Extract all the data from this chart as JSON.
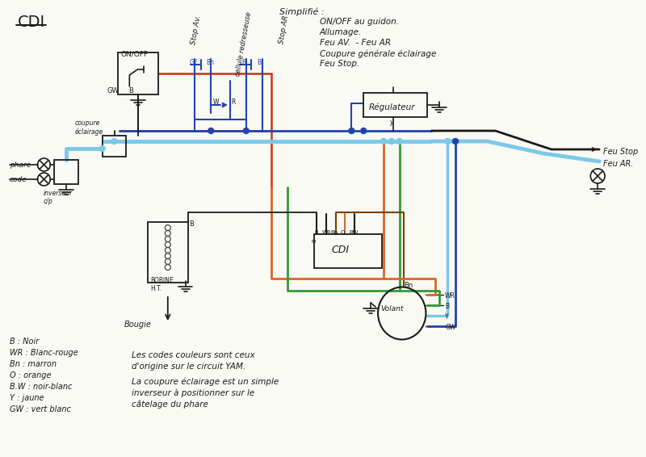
{
  "title": "CDI",
  "paper_color": "#fafaf5",
  "simplifie_text": "Simplifié :",
  "simplifie_items": [
    "ON/OFF au guidon.",
    "Allumage.",
    "Feu AV.  - Feu AR",
    "Coupure générale éclairage",
    "Feu Stop."
  ],
  "legend_items": [
    "B : Noir",
    "WR : Blanc-rouge",
    "Bn : marron",
    "O : orange",
    "B.W : noir-blanc",
    "Y : jaune",
    "GW : vert blanc"
  ],
  "note1": "Les codes couleurs sont ceux",
  "note2": "d'origine sur le circuit YAM.",
  "note3": "La coupure éclairage est un simple",
  "note4": "inverseur à positionner sur le",
  "note5": "câtelage du phare",
  "W_BLK": "#1a1a1a",
  "W_LBLUE": "#7cc8e8",
  "W_DBLUE": "#2244aa",
  "W_RED": "#cc3311",
  "W_ORANGE": "#dd6622",
  "W_GREEN": "#339933",
  "W_BROWN": "#7B3F00"
}
